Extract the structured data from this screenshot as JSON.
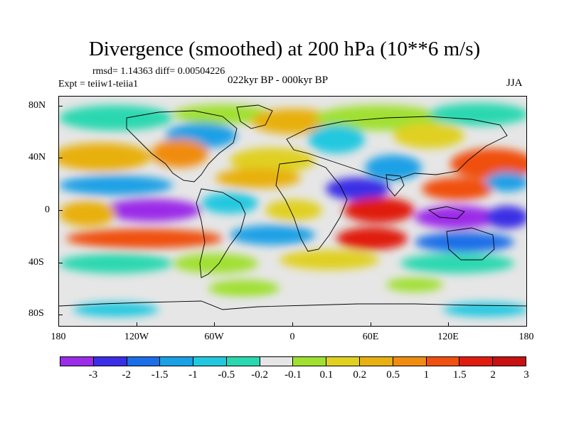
{
  "title": "Divergence (smoothed) at 200 hPa (10**6 m/s)",
  "stats": "rmsd= 1.14363 diff= 0.00504226",
  "experiment": "Expt = teiiw1-teiia1",
  "period": "022kyr BP - 000kyr BP",
  "season": "JJA",
  "map": {
    "projection": "cylindrical equidistant",
    "background_color": "#e6e6e6",
    "coastline_color": "#000000",
    "lat_ticks": [
      "80N",
      "40N",
      "0",
      "40S",
      "80S"
    ],
    "lon_ticks": [
      "180",
      "120W",
      "60W",
      "0",
      "60E",
      "120E",
      "180"
    ]
  },
  "colorbar": {
    "colors": [
      "#9b2ce8",
      "#3b2ee6",
      "#1b6ee8",
      "#1aa0e6",
      "#22c8e0",
      "#2ad8b0",
      "#e6e6e6",
      "#a0e030",
      "#e0d020",
      "#e8b010",
      "#f08c10",
      "#f05010",
      "#e01c10",
      "#c81010"
    ],
    "labels": [
      "-3",
      "-2",
      "-1.5",
      "-1",
      "-0.5",
      "-0.2",
      "-0.1",
      "0.1",
      "0.2",
      "0.5",
      "1",
      "1.5",
      "2",
      "3"
    ]
  }
}
